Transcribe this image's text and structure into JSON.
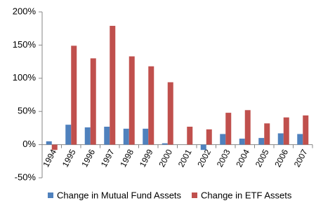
{
  "chart_data": {
    "type": "bar",
    "categories": [
      "1994",
      "1995",
      "1996",
      "1997",
      "1998",
      "1999",
      "2000",
      "2001",
      "2002",
      "2003",
      "2004",
      "2005",
      "2006",
      "2007"
    ],
    "series": [
      {
        "name": "Change in Mutual Fund Assets",
        "color": "#4f81bd",
        "values": [
          5,
          30,
          26,
          27,
          24,
          24,
          2,
          0,
          -8,
          16,
          9,
          10,
          17,
          16
        ]
      },
      {
        "name": "Change in ETF Assets",
        "color": "#c0504d",
        "values": [
          -8,
          149,
          130,
          179,
          133,
          118,
          94,
          27,
          23,
          48,
          52,
          32,
          41,
          44
        ]
      }
    ],
    "ylim": [
      -50,
      200
    ],
    "yticks": [
      {
        "value": -50,
        "label": "-50%"
      },
      {
        "value": 0,
        "label": "0%"
      },
      {
        "value": 50,
        "label": "50%"
      },
      {
        "value": 100,
        "label": "100%"
      },
      {
        "value": 150,
        "label": "150%"
      },
      {
        "value": 200,
        "label": "200%"
      }
    ],
    "legend": "bottom"
  }
}
